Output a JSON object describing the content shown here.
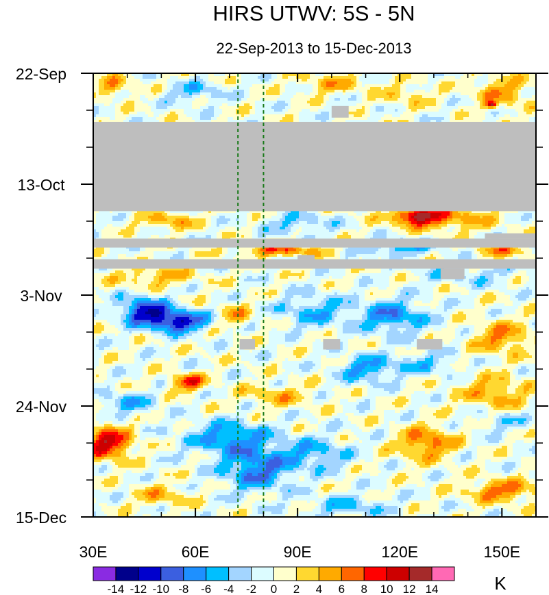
{
  "chart_data": {
    "type": "heatmap",
    "title": "HIRS UTWV: 5S - 5N",
    "subtitle": "22-Sep-2013 to 15-Dec-2013",
    "xlabel": "",
    "ylabel": "",
    "x_range": [
      30,
      160
    ],
    "x_ticks": [
      {
        "value": 30,
        "label": "30E"
      },
      {
        "value": 60,
        "label": "60E"
      },
      {
        "value": 90,
        "label": "90E"
      },
      {
        "value": 120,
        "label": "120E"
      },
      {
        "value": 150,
        "label": "150E"
      }
    ],
    "y_range_days": [
      0,
      84
    ],
    "y_ticks": [
      {
        "day": 0,
        "label": "22-Sep"
      },
      {
        "day": 21,
        "label": "13-Oct"
      },
      {
        "day": 42,
        "label": "3-Nov"
      },
      {
        "day": 63,
        "label": "24-Nov"
      },
      {
        "day": 84,
        "label": "15-Dec"
      }
    ],
    "reference_lines_lon": [
      72.5,
      80
    ],
    "missing_color": "#bebebe",
    "missing_regions": [
      {
        "lon": [
          30,
          160
        ],
        "day": [
          9.2,
          26.1
        ]
      },
      {
        "lon": [
          30,
          160
        ],
        "day": [
          31.3,
          33.0
        ]
      },
      {
        "lon": [
          145,
          160
        ],
        "day": [
          30.3,
          31.3
        ]
      },
      {
        "lon": [
          30,
          160
        ],
        "day": [
          35.2,
          37.0
        ]
      },
      {
        "lon": [
          90,
          95
        ],
        "day": [
          34.4,
          35.2
        ]
      },
      {
        "lon": [
          132,
          139
        ],
        "day": [
          37.0,
          39.0
        ]
      },
      {
        "lon": [
          100,
          105
        ],
        "day": [
          6.2,
          8.4
        ]
      },
      {
        "lon": [
          73,
          77.5
        ],
        "day": [
          50.3,
          52.3
        ]
      },
      {
        "lon": [
          97.5,
          102.5
        ],
        "day": [
          50.3,
          52.3
        ]
      },
      {
        "lon": [
          125,
          132.5
        ],
        "day": [
          50.3,
          52.3
        ]
      }
    ],
    "anomaly_features": [
      {
        "lon": 36,
        "day": 2.5,
        "value": 5,
        "rlon": 5,
        "rday": 2
      },
      {
        "lon": 60,
        "day": 3.5,
        "value": -4,
        "rlon": 8,
        "rday": 2
      },
      {
        "lon": 100,
        "day": 2.0,
        "value": 4,
        "rlon": 10,
        "rday": 1.8
      },
      {
        "lon": 122,
        "day": 4.0,
        "value": 3,
        "rlon": 8,
        "rday": 2
      },
      {
        "lon": 150,
        "day": 3.5,
        "value": 5,
        "rlon": 8,
        "rday": 3
      },
      {
        "lon": 147,
        "day": 6.0,
        "value": 11,
        "rlon": 1.5,
        "rday": 0.6
      },
      {
        "lon": 125,
        "day": 27.0,
        "value": 10,
        "rlon": 6,
        "rday": 1.5
      },
      {
        "lon": 133,
        "day": 27.5,
        "value": 6,
        "rlon": 14,
        "rday": 2.2
      },
      {
        "lon": 52,
        "day": 28.0,
        "value": 5,
        "rlon": 8,
        "rday": 1.5
      },
      {
        "lon": 90,
        "day": 28.5,
        "value": -4,
        "rlon": 10,
        "rday": 2
      },
      {
        "lon": 85,
        "day": 33.5,
        "value": 7,
        "rlon": 12,
        "rday": 1.2
      },
      {
        "lon": 120,
        "day": 33.0,
        "value": -6,
        "rlon": 10,
        "rday": 1.5
      },
      {
        "lon": 150,
        "day": 33.5,
        "value": 5,
        "rlon": 8,
        "rday": 1.5
      },
      {
        "lon": 140,
        "day": 38.0,
        "value": -3,
        "rlon": 15,
        "rday": 2
      },
      {
        "lon": 48,
        "day": 38.5,
        "value": 4,
        "rlon": 12,
        "rday": 2
      },
      {
        "lon": 45,
        "day": 45.0,
        "value": -11,
        "rlon": 7,
        "rday": 2.5
      },
      {
        "lon": 55,
        "day": 47.0,
        "value": -12,
        "rlon": 8,
        "rday": 2
      },
      {
        "lon": 72,
        "day": 46.0,
        "value": 5,
        "rlon": 4,
        "rday": 2
      },
      {
        "lon": 95,
        "day": 45.0,
        "value": -5,
        "rlon": 10,
        "rday": 3
      },
      {
        "lon": 118,
        "day": 46.0,
        "value": -7,
        "rlon": 10,
        "rday": 3
      },
      {
        "lon": 150,
        "day": 50.0,
        "value": 6,
        "rlon": 8,
        "rday": 3
      },
      {
        "lon": 110,
        "day": 56.0,
        "value": -6,
        "rlon": 8,
        "rday": 2.5
      },
      {
        "lon": 127,
        "day": 55.0,
        "value": -4,
        "rlon": 10,
        "rday": 2
      },
      {
        "lon": 58,
        "day": 58.5,
        "value": 9,
        "rlon": 5,
        "rday": 1.5
      },
      {
        "lon": 40,
        "day": 62.5,
        "value": -5,
        "rlon": 8,
        "rday": 2
      },
      {
        "lon": 84,
        "day": 61.0,
        "value": 4,
        "rlon": 10,
        "rday": 2
      },
      {
        "lon": 148,
        "day": 60.5,
        "value": 5,
        "rlon": 10,
        "rday": 3
      },
      {
        "lon": 34,
        "day": 70.0,
        "value": 11,
        "rlon": 7,
        "rday": 3
      },
      {
        "lon": 70,
        "day": 69.0,
        "value": -7,
        "rlon": 12,
        "rday": 3
      },
      {
        "lon": 78,
        "day": 75.0,
        "value": -8,
        "rlon": 10,
        "rday": 4
      },
      {
        "lon": 95,
        "day": 72.0,
        "value": -5,
        "rlon": 10,
        "rday": 3
      },
      {
        "lon": 128,
        "day": 70.0,
        "value": 7,
        "rlon": 8,
        "rday": 3
      },
      {
        "lon": 150,
        "day": 66.0,
        "value": -3,
        "rlon": 8,
        "rday": 2
      },
      {
        "lon": 150,
        "day": 79.0,
        "value": 7,
        "rlon": 10,
        "rday": 2
      },
      {
        "lon": 50,
        "day": 80.0,
        "value": 4,
        "rlon": 8,
        "rday": 2
      },
      {
        "lon": 105,
        "day": 82.0,
        "value": -4,
        "rlon": 12,
        "rday": 2
      }
    ],
    "colorbar": {
      "colors": [
        "#8a2be2",
        "#00008b",
        "#0000cd",
        "#3b5fe0",
        "#1e90ff",
        "#00bfff",
        "#a3d5ff",
        "#dcfcff",
        "#ffffcc",
        "#ffd830",
        "#ffaa00",
        "#ff6600",
        "#ff0000",
        "#cd0000",
        "#a52a2a",
        "#ff69b4"
      ],
      "levels": [
        -14,
        -12,
        -10,
        -8,
        -6,
        -4,
        -2,
        0,
        2,
        4,
        6,
        8,
        10,
        12,
        14
      ],
      "labels": [
        "-14",
        "-12",
        "-10",
        "-8",
        "-6",
        "-4",
        "-2",
        "0",
        "2",
        "4",
        "6",
        "8",
        "10",
        "12",
        "14"
      ],
      "unit": "K"
    }
  }
}
